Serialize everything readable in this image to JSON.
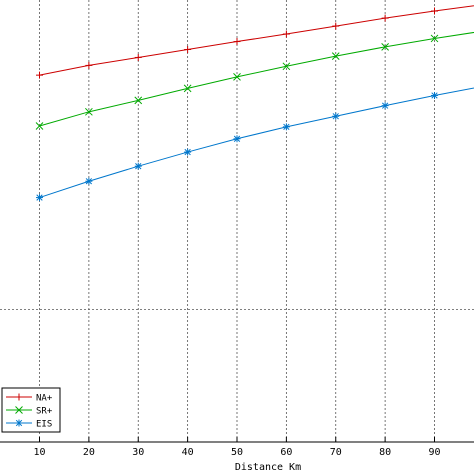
{
  "chart_data": {
    "type": "line",
    "xlabel": "Distance Km",
    "ylabel": "",
    "xlim": [
      2,
      98
    ],
    "ylim": [
      0,
      100
    ],
    "x_ticks": [
      10,
      20,
      30,
      40,
      50,
      60,
      70,
      80,
      90
    ],
    "y_grid_values": [
      30
    ],
    "grid": true,
    "legend_position": "bottom-left",
    "series": [
      {
        "name": "NA+",
        "color": "#cc0000",
        "marker": "plus",
        "x": [
          10,
          20,
          30,
          40,
          50,
          60,
          70,
          80,
          90,
          100
        ],
        "y": [
          83.0,
          85.2,
          87.0,
          88.8,
          90.6,
          92.3,
          94.1,
          95.9,
          97.5,
          99.0
        ]
      },
      {
        "name": "SR+",
        "color": "#00aa00",
        "marker": "x",
        "x": [
          10,
          20,
          30,
          40,
          50,
          60,
          70,
          80,
          90,
          100
        ],
        "y": [
          71.5,
          74.7,
          77.3,
          80.0,
          82.6,
          85.0,
          87.3,
          89.4,
          91.3,
          93.0
        ]
      },
      {
        "name": "EIS",
        "color": "#0077cc",
        "marker": "asterisk",
        "x": [
          10,
          20,
          30,
          40,
          50,
          60,
          70,
          80,
          90,
          100
        ],
        "y": [
          55.3,
          59.0,
          62.4,
          65.6,
          68.6,
          71.3,
          73.7,
          76.1,
          78.4,
          80.5
        ]
      }
    ]
  }
}
